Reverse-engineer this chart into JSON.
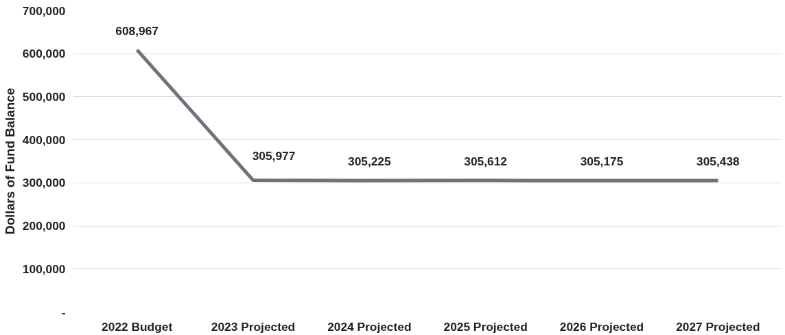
{
  "chart_data": {
    "type": "line",
    "ylabel": "Dollars of Fund Balance",
    "categories": [
      "2022 Budget",
      "2023 Projected",
      "2024 Projected",
      "2025 Projected",
      "2026 Projected",
      "2027 Projected"
    ],
    "series": [
      {
        "color": "#6d737a",
        "values": [
          608967,
          305977,
          305225,
          305612,
          305175,
          305438
        ],
        "value_labels": [
          "608,967",
          "305,977",
          "305,225",
          "305,612",
          "305,175",
          "305,438"
        ]
      }
    ],
    "ylim": [
      0,
      700000
    ],
    "yticks": [
      {
        "value": 0,
        "label": "-"
      },
      {
        "value": 100000,
        "label": "100,000"
      },
      {
        "value": 200000,
        "label": "200,000"
      },
      {
        "value": 300000,
        "label": "300,000"
      },
      {
        "value": 400000,
        "label": "400,000"
      },
      {
        "value": 500000,
        "label": "500,000"
      },
      {
        "value": 600000,
        "label": "600,000"
      },
      {
        "value": 700000,
        "label": "700,000"
      }
    ],
    "grid": "y",
    "marker": "none",
    "line_style": "solid"
  }
}
